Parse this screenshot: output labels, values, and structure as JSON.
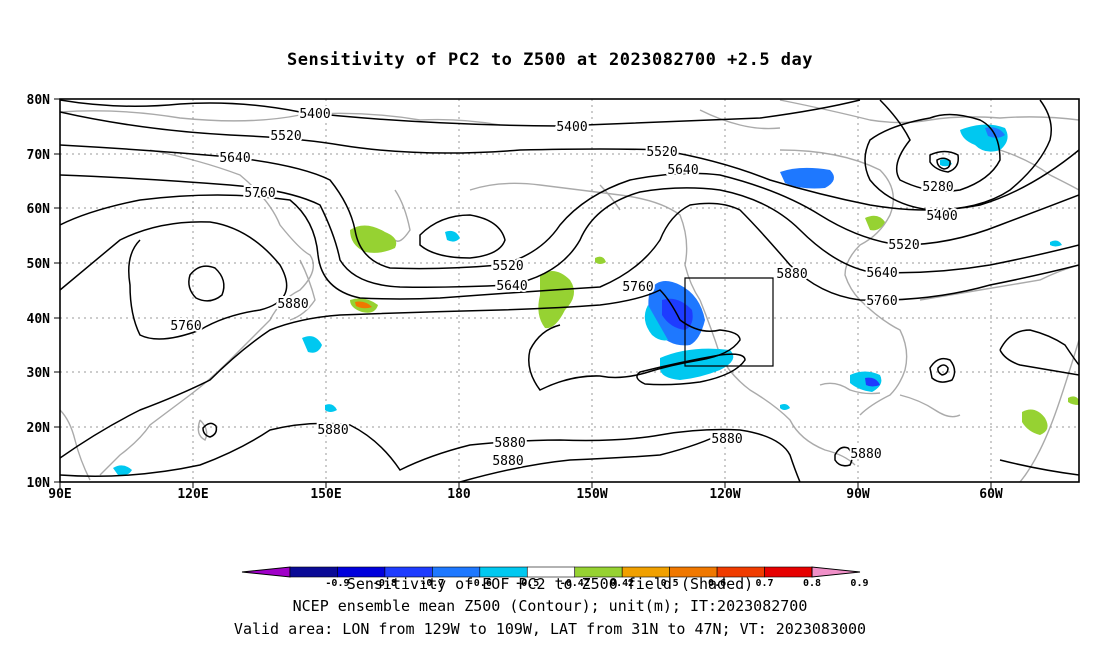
{
  "title": "Sensitivity of PC2 to Z500 at 2023082700 +2.5 day",
  "axes": {
    "lat_labels": [
      "80N",
      "70N",
      "60N",
      "50N",
      "40N",
      "30N",
      "20N",
      "10N"
    ],
    "lon_labels": [
      "90E",
      "120E",
      "150E",
      "180",
      "150W",
      "120W",
      "90W",
      "60W"
    ]
  },
  "contour_labels": {
    "c5400a": "5400",
    "c5400b": "5400",
    "c5400c": "5400",
    "c5520a": "5520",
    "c5520b": "5520",
    "c5520c": "5520",
    "c5520d": "5520",
    "c5640a": "5640",
    "c5640b": "5640",
    "c5640c": "5640",
    "c5640d": "5640",
    "c5760a": "5760",
    "c5760b": "5760",
    "c5760c": "5760",
    "c5760d": "5760",
    "c5880a": "5880",
    "c5880b": "5880",
    "c5880c": "5880",
    "c5880d": "5880",
    "c5880e": "5880",
    "c5880f": "5880",
    "c5880g": "5880",
    "c5280": "5280"
  },
  "colorbar": {
    "ticks": [
      "-0.9",
      "-0.8",
      "-0.7",
      "-0.6",
      "-0.5",
      "-0.42",
      "0.42",
      "0.5",
      "0.6",
      "0.7",
      "0.8",
      "0.9"
    ],
    "colors": [
      "#a000c8",
      "#0a0a96",
      "#0000dc",
      "#1e3cff",
      "#1e78ff",
      "#00c8f0",
      "#ffffff",
      "#96d232",
      "#f0a000",
      "#f07800",
      "#f03c00",
      "#e60000",
      "#f090c8"
    ],
    "caption": "Sensitivity of EOF PC2 to Z500 field (Shaded)"
  },
  "footer": {
    "line1": "NCEP ensemble mean Z500 (Contour); unit(m); IT:2023082700",
    "line2": "Valid area: LON from 129W to 109W, LAT from 31N to 47N; VT: 2023083000"
  }
}
